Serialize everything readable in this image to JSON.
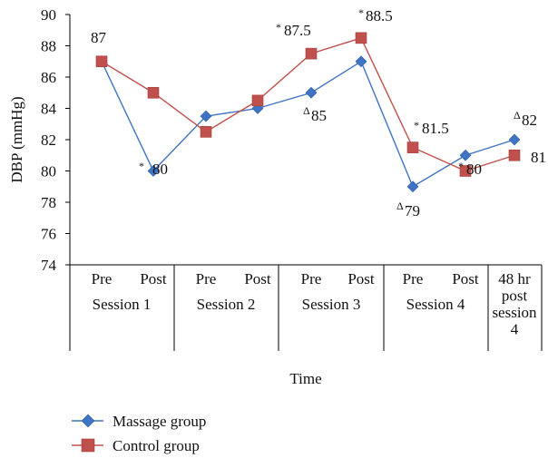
{
  "chart_data": {
    "type": "line",
    "title": "",
    "ylabel": "DBP (mmHg)",
    "xlabel": "Time",
    "ylim": [
      74,
      90
    ],
    "yticks": [
      74,
      76,
      78,
      80,
      82,
      84,
      86,
      88,
      90
    ],
    "grid": false,
    "legend": "bottom-left",
    "x": [
      "Pre",
      "Post",
      "Pre",
      "Post",
      "Pre",
      "Post",
      "Pre",
      "Post",
      "48 hr post session 4"
    ],
    "groups": [
      {
        "label": "Session 1",
        "lines": [
          "Session 1"
        ]
      },
      {
        "label": "Session 2",
        "lines": [
          "Session 2"
        ]
      },
      {
        "label": "Session 3",
        "lines": [
          "Session 3"
        ]
      },
      {
        "label": "Session 4",
        "lines": [
          "Session 4"
        ]
      },
      {
        "label": "48 hr post session 4",
        "lines": [
          "48 hr",
          "post",
          "session",
          "4"
        ]
      }
    ],
    "series": [
      {
        "name": "Massage group",
        "color": "#3f73c4",
        "marker": "diamond",
        "values": [
          87,
          80,
          83.5,
          84,
          85,
          87,
          79,
          81,
          82
        ]
      },
      {
        "name": "Control group",
        "color": "#c0504d",
        "marker": "square",
        "values": [
          87,
          85,
          82.5,
          84.5,
          87.5,
          88.5,
          81.5,
          80,
          81
        ]
      }
    ],
    "annotations": [
      {
        "text": "87",
        "symbol": ""
      },
      {
        "text": "80",
        "symbol": "*"
      },
      {
        "text": "87.5",
        "symbol": "*"
      },
      {
        "text": "88.5",
        "symbol": "*"
      },
      {
        "text": "85",
        "symbol": "Δ"
      },
      {
        "text": "81.5",
        "symbol": "*"
      },
      {
        "text": "79",
        "symbol": "Δ"
      },
      {
        "text": "80",
        "symbol": "*"
      },
      {
        "text": "82",
        "symbol": "Δ"
      },
      {
        "text": "81",
        "symbol": ""
      }
    ]
  }
}
